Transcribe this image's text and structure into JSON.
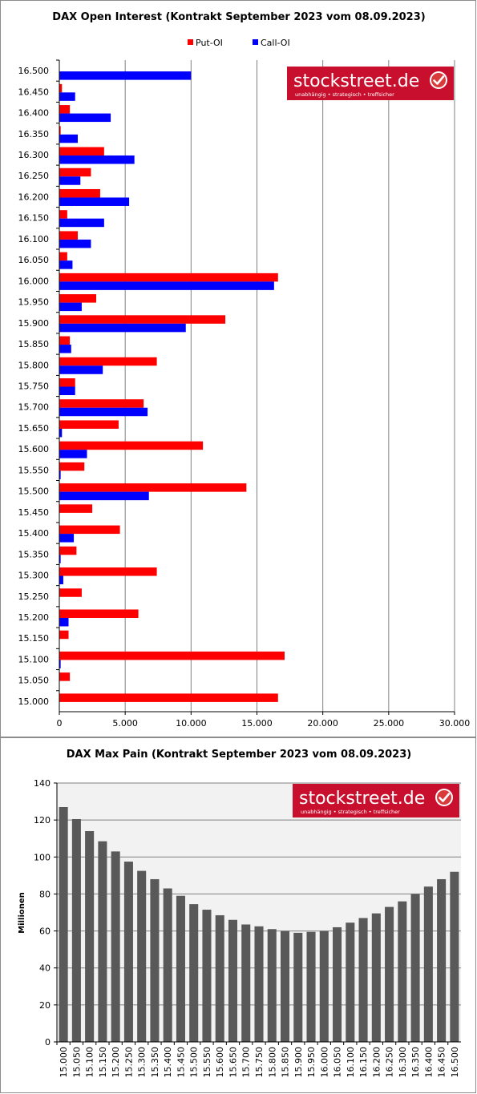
{
  "brand": {
    "logo_text": "stockstreet.de",
    "tagline": "unabhängig • strategisch • treffsicher",
    "logo_color": "#c8102e",
    "check_icon": "check-circle-icon"
  },
  "colors": {
    "put": "#ff0000",
    "call": "#0000ff",
    "bar": "#595959",
    "grid": "#808080",
    "plot_bg": "#f2f2f2"
  },
  "chart_data": [
    {
      "type": "bar",
      "orientation": "horizontal",
      "title": "DAX Open Interest (Kontrakt September 2023 vom 08.09.2023)",
      "categories": [
        "15.000",
        "15.050",
        "15.100",
        "15.150",
        "15.200",
        "15.250",
        "15.300",
        "15.350",
        "15.400",
        "15.450",
        "15.500",
        "15.550",
        "15.600",
        "15.650",
        "15.700",
        "15.750",
        "15.800",
        "15.850",
        "15.900",
        "15.950",
        "16.000",
        "16.050",
        "16.100",
        "16.150",
        "16.200",
        "16.250",
        "16.300",
        "16.350",
        "16.400",
        "16.450",
        "16.500"
      ],
      "series": [
        {
          "name": "Put-OI",
          "values": [
            16600,
            800,
            17100,
            700,
            6000,
            1700,
            7400,
            1300,
            4600,
            2500,
            14200,
            1900,
            10900,
            4500,
            6400,
            1200,
            7400,
            800,
            12600,
            2800,
            16600,
            600,
            1400,
            600,
            3100,
            2400,
            3400,
            100,
            800,
            200,
            0
          ]
        },
        {
          "name": "Call-OI",
          "values": [
            0,
            0,
            100,
            0,
            700,
            0,
            300,
            100,
            1100,
            0,
            6800,
            100,
            2100,
            200,
            6700,
            1200,
            3300,
            900,
            9600,
            1700,
            16300,
            1000,
            2400,
            3400,
            5300,
            1600,
            5700,
            1400,
            3900,
            1200,
            10000
          ]
        }
      ],
      "xlim": [
        0,
        30000
      ],
      "xticks": [
        "0",
        "5.000",
        "10.000",
        "15.000",
        "20.000",
        "25.000",
        "30.000"
      ],
      "grid": true,
      "legend": "top-center"
    },
    {
      "type": "bar",
      "title": "DAX Max Pain (Kontrakt September 2023 vom 08.09.2023)",
      "ylabel": "Millionen",
      "categories": [
        "15.000",
        "15.050",
        "15.100",
        "15.150",
        "15.200",
        "15.250",
        "15.300",
        "15.350",
        "15.400",
        "15.450",
        "15.500",
        "15.550",
        "15.600",
        "15.650",
        "15.700",
        "15.750",
        "15.800",
        "15.850",
        "15.900",
        "15.950",
        "16.000",
        "16.050",
        "16.100",
        "16.150",
        "16.200",
        "16.250",
        "16.300",
        "16.350",
        "16.400",
        "16.450",
        "16.500"
      ],
      "values": [
        127,
        120.5,
        114,
        108.5,
        103,
        97.5,
        92.5,
        88,
        83,
        79,
        74.5,
        71.5,
        68.5,
        66,
        63.5,
        62.5,
        61,
        60,
        59,
        59.5,
        60,
        62,
        64.5,
        67,
        69.5,
        73,
        76,
        80,
        84,
        88,
        92
      ],
      "ylim": [
        0,
        140
      ],
      "yticks": [
        "0",
        "20",
        "40",
        "60",
        "80",
        "100",
        "120",
        "140"
      ],
      "grid": true
    }
  ]
}
